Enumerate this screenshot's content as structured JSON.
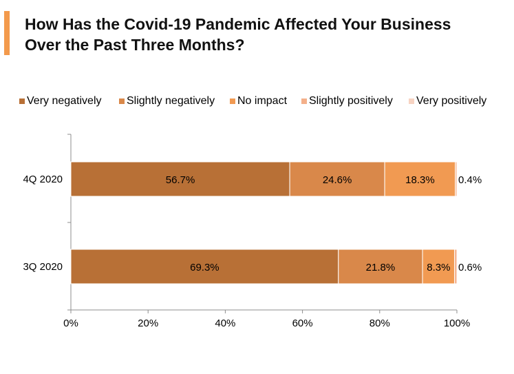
{
  "chart_data": {
    "type": "bar",
    "orientation": "horizontal",
    "stacked": true,
    "title": "How Has the Covid-19 Pandemic Affected Your Business Over the Past Three Months?",
    "title_lines": [
      "How Has the Covid-19 Pandemic Affected Your Business",
      "Over the Past Three Months?"
    ],
    "categories": [
      "4Q 2020",
      "3Q 2020"
    ],
    "series": [
      {
        "name": "Very negatively",
        "color": "#b87036",
        "values": [
          56.7,
          69.3
        ],
        "labels": [
          "56.7%",
          "69.3%"
        ]
      },
      {
        "name": "Slightly negatively",
        "color": "#d9884a",
        "values": [
          24.6,
          21.8
        ],
        "labels": [
          "24.6%",
          "21.8%"
        ]
      },
      {
        "name": "No impact",
        "color": "#f19a52",
        "values": [
          18.3,
          8.3
        ],
        "labels": [
          "18.3%",
          "8.3%"
        ]
      },
      {
        "name": "Slightly positively",
        "color": "#f4b08a",
        "values": [
          0.4,
          0.6
        ],
        "labels": [
          "0.4%",
          "0.6%"
        ]
      },
      {
        "name": "Very positively",
        "color": "#f7d3c2",
        "values": [
          0,
          0
        ],
        "labels": [
          "",
          ""
        ]
      }
    ],
    "xlim": [
      0,
      100
    ],
    "xticks": [
      "0%",
      "20%",
      "40%",
      "60%",
      "80%",
      "100%"
    ],
    "xlabel": "",
    "ylabel": "",
    "legend_position": "top",
    "grid": false
  }
}
